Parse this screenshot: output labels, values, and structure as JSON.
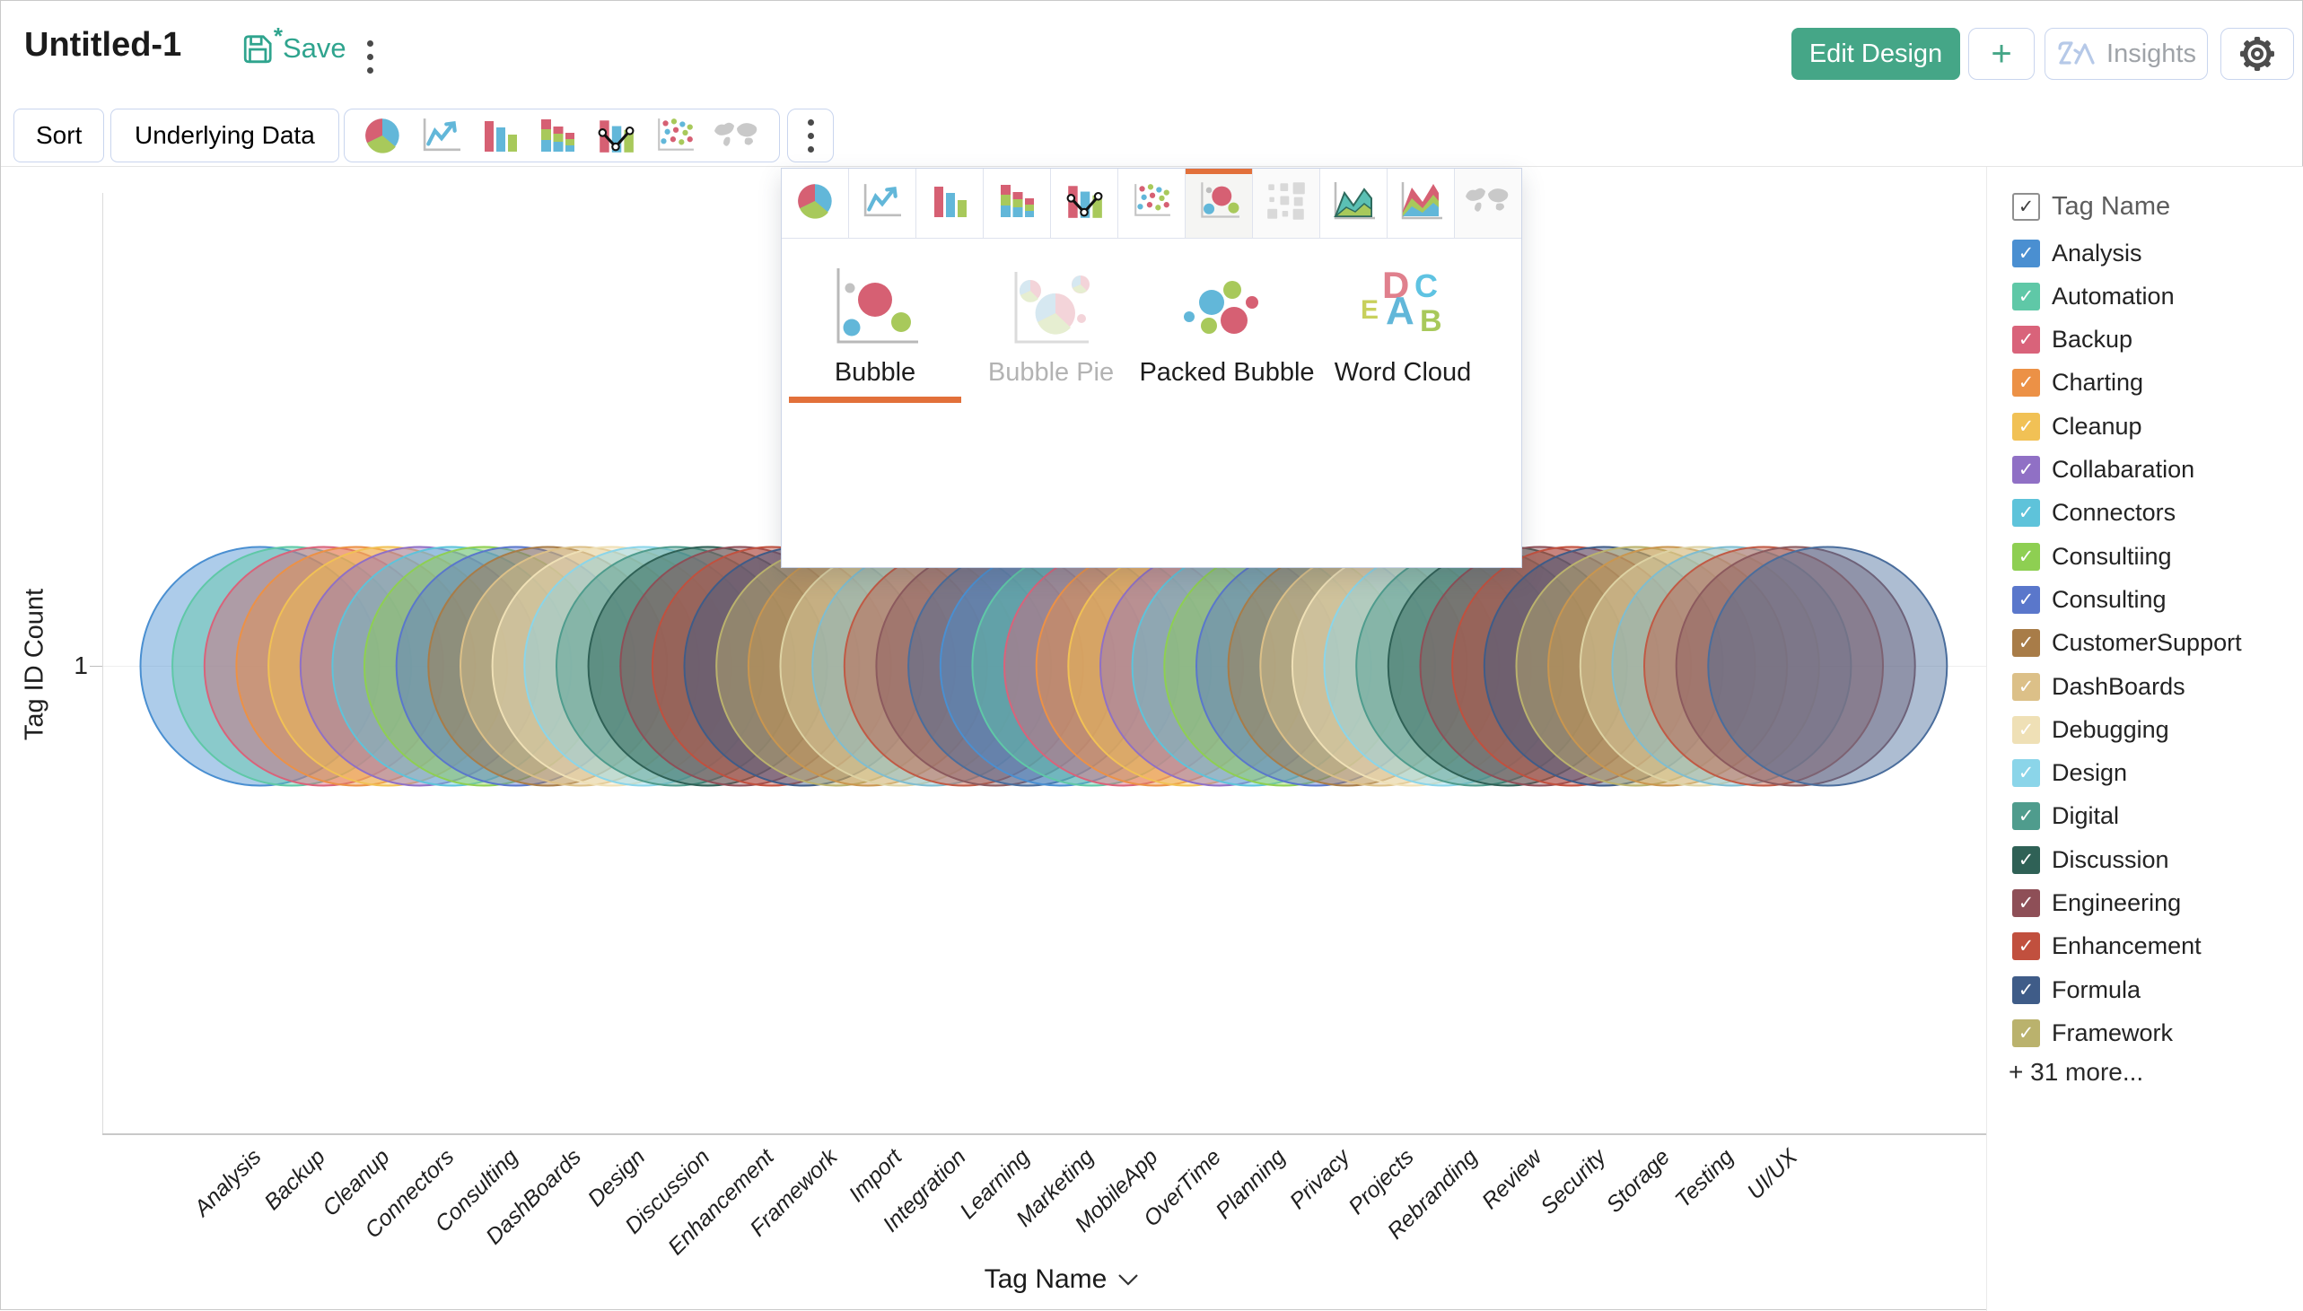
{
  "header": {
    "title": "Untitled-1",
    "save": "Save",
    "edit_design": "Edit Design",
    "plus": "+",
    "insights": "Insights"
  },
  "colors": {
    "accent_green": "#45a687",
    "save_teal": "#2fa48e",
    "selection_orange": "#e2703a",
    "button_border": "#c9d5ee"
  },
  "toolbar": {
    "sort": "Sort",
    "underlying_data": "Underlying Data",
    "chart_type_icons": [
      {
        "name": "pie-chart-icon",
        "enabled": true
      },
      {
        "name": "line-chart-icon",
        "enabled": true
      },
      {
        "name": "bar-chart-icon",
        "enabled": true
      },
      {
        "name": "stacked-bar-chart-icon",
        "enabled": true
      },
      {
        "name": "combo-chart-icon",
        "enabled": true
      },
      {
        "name": "scatter-chart-icon",
        "enabled": true
      },
      {
        "name": "map-chart-icon",
        "enabled": false
      }
    ]
  },
  "chart_picker": {
    "tabs": [
      {
        "name": "pie-chart-tab",
        "icon": "pie-chart-icon",
        "state": "normal"
      },
      {
        "name": "line-chart-tab",
        "icon": "line-chart-icon",
        "state": "normal"
      },
      {
        "name": "bar-chart-tab",
        "icon": "bar-chart-icon",
        "state": "normal"
      },
      {
        "name": "stacked-bar-chart-tab",
        "icon": "stacked-bar-chart-icon",
        "state": "normal"
      },
      {
        "name": "combo-chart-tab",
        "icon": "combo-chart-icon",
        "state": "normal"
      },
      {
        "name": "scatter-chart-tab",
        "icon": "scatter-chart-icon",
        "state": "normal"
      },
      {
        "name": "bubble-chart-tab",
        "icon": "bubble-chart-icon",
        "state": "selected"
      },
      {
        "name": "heatmap-chart-tab",
        "icon": "heatmap-chart-icon",
        "state": "disabled"
      },
      {
        "name": "area-chart-tab",
        "icon": "area-chart-icon",
        "state": "normal"
      },
      {
        "name": "stacked-area-chart-tab",
        "icon": "stacked-area-chart-icon",
        "state": "normal"
      },
      {
        "name": "map-chart-tab",
        "icon": "map-chart-icon",
        "state": "disabled"
      }
    ],
    "options": [
      {
        "label": "Bubble",
        "icon": "bubble-option-icon",
        "state": "selected"
      },
      {
        "label": "Bubble Pie",
        "icon": "bubble-pie-option-icon",
        "state": "disabled"
      },
      {
        "label": "Packed Bubble",
        "icon": "packed-bubble-option-icon",
        "state": "normal"
      },
      {
        "label": "Word Cloud",
        "icon": "word-cloud-option-icon",
        "state": "normal"
      }
    ]
  },
  "legend": {
    "header": "Tag Name",
    "header_checked": true,
    "items": [
      {
        "label": "Analysis",
        "color": "#4a8fd1",
        "checked": true
      },
      {
        "label": "Automation",
        "color": "#5fc8a7",
        "checked": true
      },
      {
        "label": "Backup",
        "color": "#d9637a",
        "checked": true
      },
      {
        "label": "Charting",
        "color": "#ec9146",
        "checked": true
      },
      {
        "label": "Cleanup",
        "color": "#f1c155",
        "checked": true
      },
      {
        "label": "Collabaration",
        "color": "#9070c5",
        "checked": true
      },
      {
        "label": "Connectors",
        "color": "#5ec3da",
        "checked": true
      },
      {
        "label": "Consultiing",
        "color": "#8ecf52",
        "checked": true
      },
      {
        "label": "Consulting",
        "color": "#5a77cb",
        "checked": true
      },
      {
        "label": "CustomerSupport",
        "color": "#a87c48",
        "checked": true
      },
      {
        "label": "DashBoards",
        "color": "#dcc088",
        "checked": true
      },
      {
        "label": "Debugging",
        "color": "#efe0b6",
        "checked": true
      },
      {
        "label": "Design",
        "color": "#8bd5e9",
        "checked": true
      },
      {
        "label": "Digital",
        "color": "#4f9c8d",
        "checked": true
      },
      {
        "label": "Discussion",
        "color": "#2f6156",
        "checked": true
      },
      {
        "label": "Engineering",
        "color": "#8e4f57",
        "checked": true
      },
      {
        "label": "Enhancement",
        "color": "#c1503e",
        "checked": true
      },
      {
        "label": "Formula",
        "color": "#3f5c88",
        "checked": true
      },
      {
        "label": "Framework",
        "color": "#bab26d",
        "checked": true
      }
    ],
    "more": "+ 31 more..."
  },
  "chart_data": {
    "type": "bubble",
    "title": "",
    "xlabel": "Tag Name",
    "ylabel": "Tag ID Count",
    "x_tick_labels": [
      "Analysis",
      "Backup",
      "Cleanup",
      "Connectors",
      "Consulting",
      "DashBoards",
      "Design",
      "Discussion",
      "Enhancement",
      "Framework",
      "Import",
      "Integration",
      "Learning",
      "Marketing",
      "MobileApp",
      "OverTime",
      "Planning",
      "Privacy",
      "Projects",
      "Rebranding",
      "Review",
      "Security",
      "Storage",
      "Testing",
      "UI/UX"
    ],
    "values": [
      1,
      1,
      1,
      1,
      1,
      1,
      1,
      1,
      1,
      1,
      1,
      1,
      1,
      1,
      1,
      1,
      1,
      1,
      1,
      1,
      1,
      1,
      1,
      1,
      1
    ],
    "y_tick_labels": [
      "1"
    ],
    "bubble_count": 50,
    "fill_opacity": 0.45,
    "legend_position": "right",
    "palette": [
      "#4a8fd1",
      "#5fc8a7",
      "#d9637a",
      "#ec9146",
      "#f1c155",
      "#9070c5",
      "#5ec3da",
      "#8ecf52",
      "#5a77cb",
      "#a87c48",
      "#dcc088",
      "#efe0b6",
      "#8bd5e9",
      "#4f9c8d",
      "#2f6156",
      "#8e4f57",
      "#c1503e",
      "#3f5c88",
      "#bab26d",
      "#c9964f",
      "#ddd2a3",
      "#7fbdd0",
      "#c05a45",
      "#8c5a5e",
      "#4a6d9c"
    ]
  }
}
